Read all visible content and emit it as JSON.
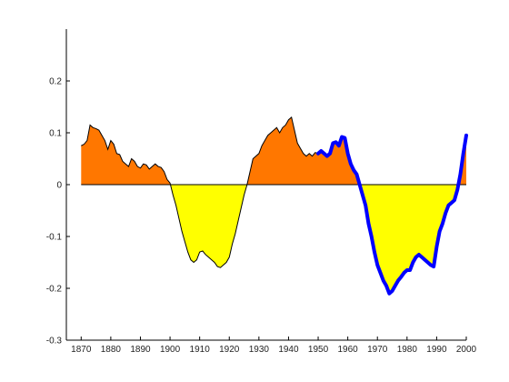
{
  "chart_data": {
    "type": "area",
    "title": "",
    "xlabel": "",
    "ylabel": "",
    "xlim": [
      1865,
      2000
    ],
    "ylim": [
      -0.3,
      0.3
    ],
    "grid": false,
    "x_ticks": [
      1870,
      1880,
      1890,
      1900,
      1910,
      1920,
      1930,
      1940,
      1950,
      1960,
      1970,
      1980,
      1990,
      2000
    ],
    "y_ticks": [
      -0.3,
      -0.2,
      -0.1,
      0,
      0.1,
      0.2
    ],
    "y_tick_labels": [
      "-0.3",
      "-0.2",
      "-0.1",
      "0",
      "0.1",
      "0.2"
    ],
    "x_tick_labels": [
      "1870",
      "1880",
      "1890",
      "1900",
      "1910",
      "1920",
      "1930",
      "1940",
      "1950",
      "1960",
      "1970",
      "1980",
      "1990",
      "2000"
    ],
    "baseline": 0,
    "colors": {
      "positive_fill": "#ff7700",
      "negative_fill": "#ffff00",
      "outline": "#000000",
      "highlight_line": "#0000ff"
    },
    "series": [
      {
        "role": "anomaly",
        "x": [
          1870,
          1871,
          1872,
          1873,
          1874,
          1875,
          1876,
          1877,
          1878,
          1879,
          1880,
          1881,
          1882,
          1883,
          1884,
          1885,
          1886,
          1887,
          1888,
          1889,
          1890,
          1891,
          1892,
          1893,
          1894,
          1895,
          1896,
          1897,
          1898,
          1899,
          1900,
          1901,
          1902,
          1903,
          1904,
          1905,
          1906,
          1907,
          1908,
          1909,
          1910,
          1911,
          1912,
          1913,
          1914,
          1915,
          1916,
          1917,
          1918,
          1919,
          1920,
          1921,
          1922,
          1923,
          1924,
          1925,
          1926,
          1927,
          1928,
          1929,
          1930,
          1931,
          1932,
          1933,
          1934,
          1935,
          1936,
          1937,
          1938,
          1939,
          1940,
          1941,
          1942,
          1943,
          1944,
          1945,
          1946,
          1947,
          1948,
          1949,
          1950,
          1951,
          1952,
          1953,
          1954,
          1955,
          1956,
          1957,
          1958,
          1959,
          1960,
          1961,
          1962,
          1963,
          1964,
          1965,
          1966,
          1967,
          1968,
          1969,
          1970,
          1971,
          1972,
          1973,
          1974,
          1975,
          1976,
          1977,
          1978,
          1979,
          1980,
          1981,
          1982,
          1983,
          1984,
          1985,
          1986,
          1987,
          1988,
          1989,
          1990,
          1991,
          1992,
          1993,
          1994,
          1995,
          1996,
          1997,
          1998,
          1999,
          2000
        ],
        "values": [
          0.075,
          0.078,
          0.085,
          0.115,
          0.11,
          0.108,
          0.105,
          0.095,
          0.085,
          0.068,
          0.085,
          0.078,
          0.06,
          0.058,
          0.045,
          0.04,
          0.035,
          0.05,
          0.045,
          0.035,
          0.032,
          0.04,
          0.038,
          0.03,
          0.035,
          0.04,
          0.035,
          0.033,
          0.025,
          0.01,
          0.003,
          -0.02,
          -0.04,
          -0.065,
          -0.09,
          -0.11,
          -0.13,
          -0.145,
          -0.15,
          -0.145,
          -0.13,
          -0.128,
          -0.135,
          -0.14,
          -0.145,
          -0.15,
          -0.158,
          -0.16,
          -0.155,
          -0.15,
          -0.14,
          -0.115,
          -0.095,
          -0.07,
          -0.045,
          -0.02,
          0.0,
          0.025,
          0.05,
          0.055,
          0.06,
          0.075,
          0.085,
          0.095,
          0.1,
          0.105,
          0.11,
          0.1,
          0.11,
          0.115,
          0.125,
          0.13,
          0.105,
          0.08,
          0.07,
          0.06,
          0.055,
          0.06,
          0.055,
          0.062,
          0.06,
          0.065,
          0.06,
          0.055,
          0.06,
          0.08,
          0.082,
          0.075,
          0.092,
          0.09,
          0.06,
          0.04,
          0.028,
          0.02,
          0.0,
          -0.02,
          -0.04,
          -0.075,
          -0.1,
          -0.13,
          -0.155,
          -0.17,
          -0.185,
          -0.195,
          -0.21,
          -0.205,
          -0.195,
          -0.185,
          -0.178,
          -0.17,
          -0.165,
          -0.165,
          -0.15,
          -0.14,
          -0.135,
          -0.14,
          -0.145,
          -0.15,
          -0.155,
          -0.158,
          -0.12,
          -0.09,
          -0.075,
          -0.055,
          -0.04,
          -0.035,
          -0.03,
          -0.01,
          0.02,
          0.06,
          0.095
        ]
      },
      {
        "role": "highlight",
        "x_start": 1950,
        "x_end": 2000
      }
    ]
  }
}
